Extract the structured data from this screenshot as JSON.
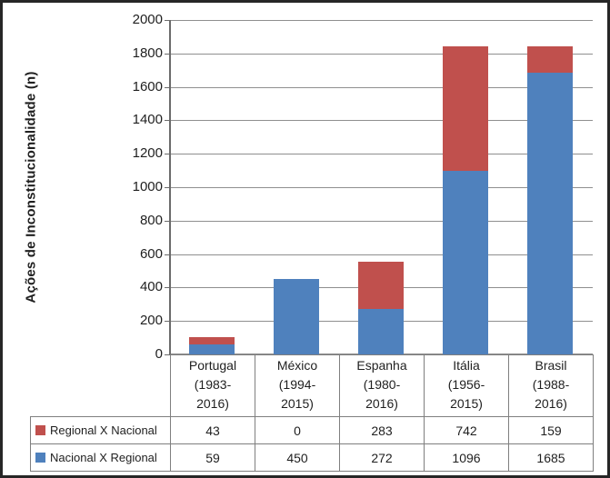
{
  "window": {
    "background": "#ffffff",
    "frame_border_color": "#262626"
  },
  "chart_data": {
    "type": "bar",
    "stacked": true,
    "title": "",
    "xlabel": "",
    "ylabel": "Ações de Inconstitucionalidade (n)",
    "ylim": [
      0,
      2000
    ],
    "yticks": [
      2000,
      1800,
      1600,
      1400,
      1200,
      1000,
      800,
      600,
      400,
      200,
      0
    ],
    "grid": true,
    "legend_position": "data-table-left-column",
    "categories": [
      "Portugal (1983-2016)",
      "México (1994-2015)",
      "Espanha (1980-2016)",
      "Itália (1956-2015)",
      "Brasil (1988-2016)"
    ],
    "category_label_lines": [
      [
        "Portugal",
        "(1983-",
        "2016)"
      ],
      [
        "México",
        "(1994-",
        "2015)"
      ],
      [
        "Espanha",
        "(1980-",
        "2016)"
      ],
      [
        "Itália",
        "(1956-",
        "2015)"
      ],
      [
        "Brasil",
        "(1988-",
        "2016)"
      ]
    ],
    "series": [
      {
        "name": "Regional X Nacional",
        "color": "#C0504D",
        "values": [
          43,
          0,
          283,
          742,
          159
        ]
      },
      {
        "name": "Nacional X Regional",
        "color": "#4F81BD",
        "values": [
          59,
          450,
          272,
          1096,
          1685
        ]
      }
    ],
    "stack_order_bottom_to_top": [
      "Nacional X Regional",
      "Regional X Nacional"
    ],
    "colors": {
      "gridline": "#8f8f8f",
      "axis": "#6b6b6b",
      "table_border": "#7f7f7f",
      "text": "#1f1f1f"
    }
  }
}
